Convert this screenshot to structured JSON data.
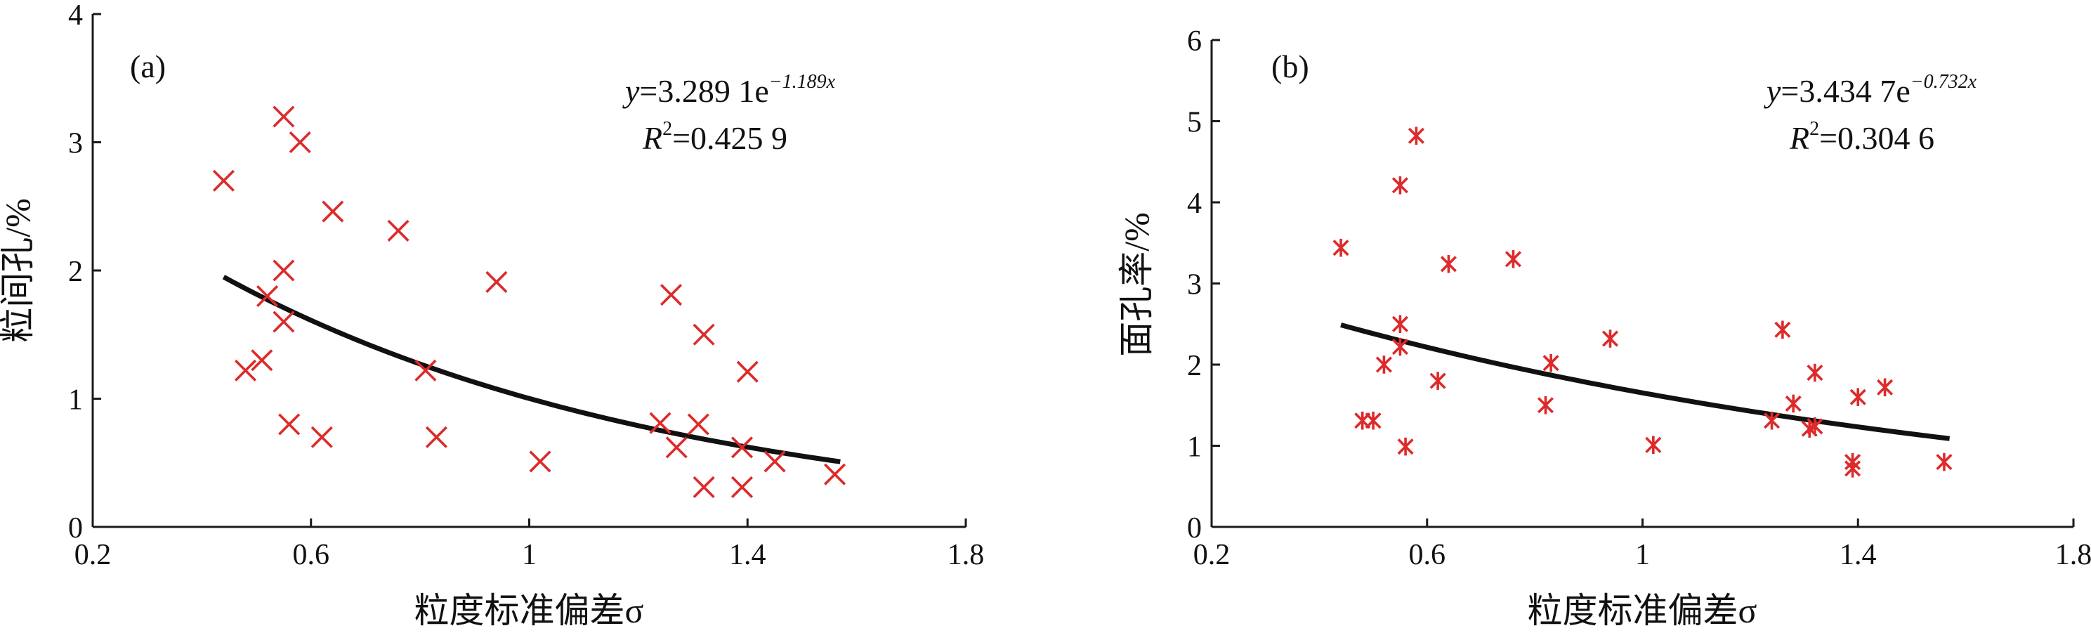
{
  "chart_data": [
    {
      "type": "scatter",
      "panel_label": "(a)",
      "xlabel": "粒度标准偏差σ",
      "ylabel": "粒间孔/%",
      "xlim": [
        0.2,
        1.8
      ],
      "ylim": [
        0,
        4
      ],
      "xticks": [
        "0.2",
        "0.6",
        "1",
        "1.4",
        "1.8"
      ],
      "yticks": [
        "0",
        "1",
        "2",
        "3",
        "4"
      ],
      "marker": "x",
      "marker_color": "#dd2a2a",
      "equation": {
        "y": "y",
        "eq": "=3.289 1e",
        "exp": "−1.189x",
        "r": "R",
        "r_sup": "2",
        "r_val": "=0.425 9"
      },
      "fit": {
        "a": 3.2891,
        "b": -1.189,
        "x_range": [
          0.44,
          1.57
        ]
      },
      "series": [
        {
          "points": [
            [
              0.44,
              2.7
            ],
            [
              0.48,
              1.22
            ],
            [
              0.51,
              1.3
            ],
            [
              0.52,
              1.8
            ],
            [
              0.55,
              3.2
            ],
            [
              0.55,
              2.0
            ],
            [
              0.55,
              1.6
            ],
            [
              0.56,
              0.8
            ],
            [
              0.58,
              3.0
            ],
            [
              0.62,
              0.7
            ],
            [
              0.64,
              2.46
            ],
            [
              0.76,
              2.31
            ],
            [
              0.81,
              1.22
            ],
            [
              0.83,
              0.7
            ],
            [
              0.94,
              1.91
            ],
            [
              1.02,
              0.51
            ],
            [
              1.24,
              0.81
            ],
            [
              1.26,
              1.81
            ],
            [
              1.27,
              0.62
            ],
            [
              1.31,
              0.8
            ],
            [
              1.32,
              1.5
            ],
            [
              1.32,
              0.31
            ],
            [
              1.39,
              0.62
            ],
            [
              1.39,
              0.31
            ],
            [
              1.4,
              1.21
            ],
            [
              1.45,
              0.51
            ],
            [
              1.56,
              0.41
            ]
          ]
        }
      ]
    },
    {
      "type": "scatter",
      "panel_label": "(b)",
      "xlabel": "粒度标准偏差σ",
      "ylabel": "面孔率/%",
      "xlim": [
        0.2,
        1.8
      ],
      "ylim": [
        0,
        6
      ],
      "xticks": [
        "0.2",
        "0.6",
        "1",
        "1.4",
        "1.8"
      ],
      "yticks": [
        "0",
        "1",
        "2",
        "3",
        "4",
        "5",
        "6"
      ],
      "marker": "asterisk",
      "marker_color": "#dd2a2a",
      "equation": {
        "y": "y",
        "eq": "=3.434 7e",
        "exp": "−0.732x",
        "r": "R",
        "r_sup": "2",
        "r_val": "=0.304 6"
      },
      "fit": {
        "a": 3.4347,
        "b": -0.732,
        "x_range": [
          0.44,
          1.57
        ]
      },
      "series": [
        {
          "points": [
            [
              0.44,
              3.44
            ],
            [
              0.48,
              1.31
            ],
            [
              0.5,
              1.31
            ],
            [
              0.52,
              2.0
            ],
            [
              0.55,
              4.21
            ],
            [
              0.55,
              2.5
            ],
            [
              0.55,
              2.22
            ],
            [
              0.56,
              0.99
            ],
            [
              0.58,
              4.82
            ],
            [
              0.62,
              1.8
            ],
            [
              0.64,
              3.24
            ],
            [
              0.76,
              3.3
            ],
            [
              0.82,
              1.5
            ],
            [
              0.83,
              2.02
            ],
            [
              0.94,
              2.32
            ],
            [
              1.02,
              1.01
            ],
            [
              1.24,
              1.31
            ],
            [
              1.26,
              2.43
            ],
            [
              1.28,
              1.52
            ],
            [
              1.31,
              1.21
            ],
            [
              1.32,
              1.9
            ],
            [
              1.32,
              1.24
            ],
            [
              1.39,
              0.8
            ],
            [
              1.39,
              0.72
            ],
            [
              1.4,
              1.6
            ],
            [
              1.45,
              1.72
            ],
            [
              1.56,
              0.8
            ]
          ]
        }
      ]
    }
  ]
}
